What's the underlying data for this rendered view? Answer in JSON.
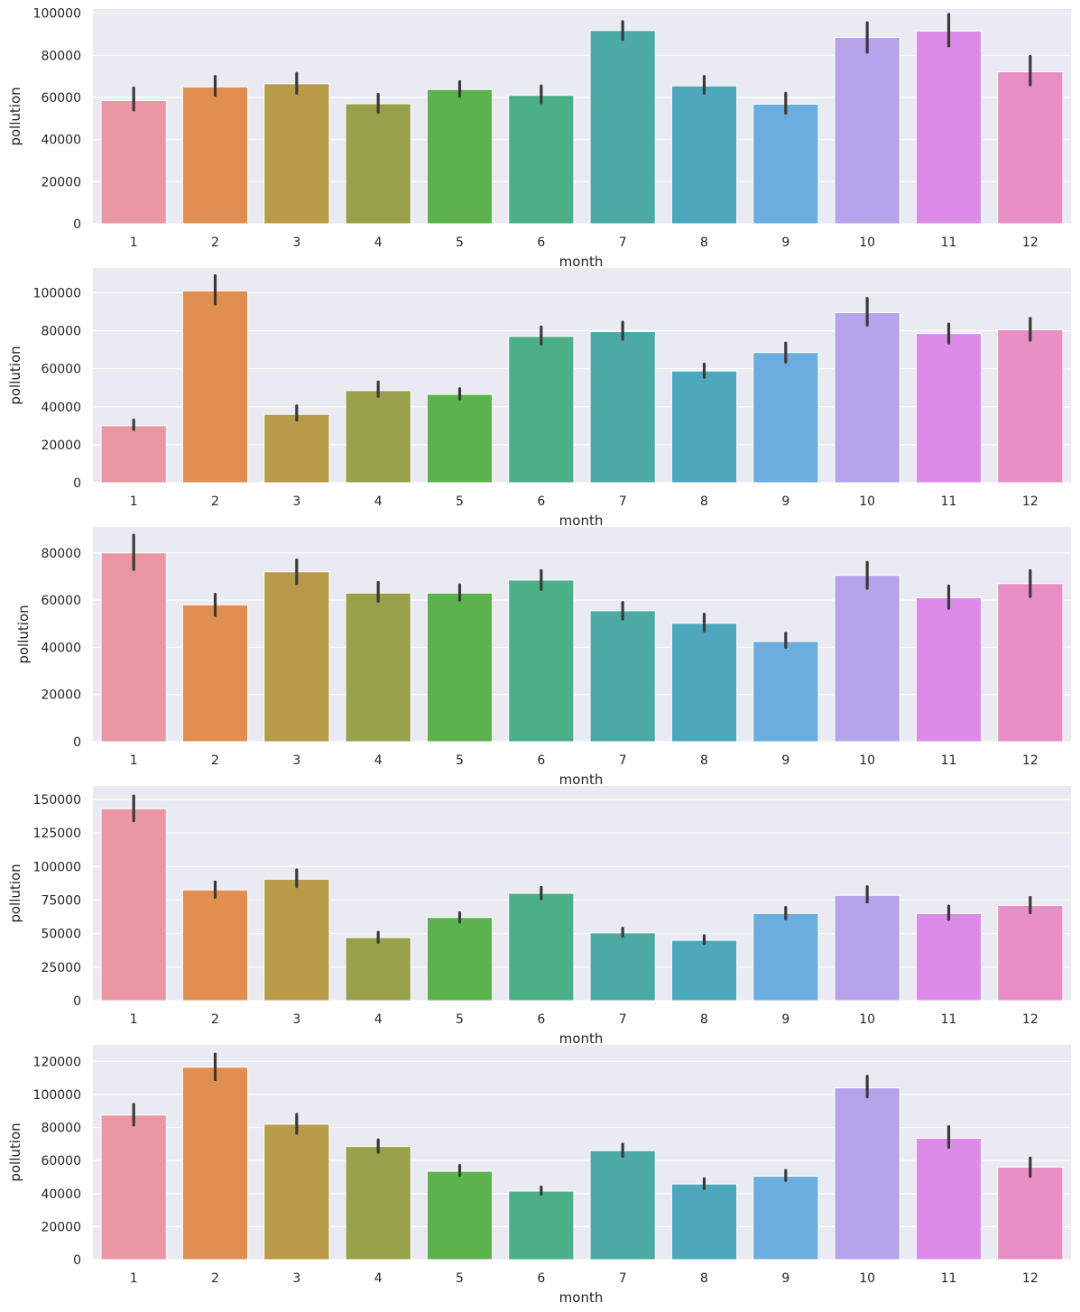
{
  "figure": {
    "type": "bar-grid",
    "rows": 5
  },
  "palette": [
    "#ea96a3",
    "#e08f50",
    "#b89a49",
    "#98a04a",
    "#5cb34e",
    "#4daf88",
    "#4caaa5",
    "#4ea8bd",
    "#6aadde",
    "#b5a4ec",
    "#dd8be8",
    "#e88ec4"
  ],
  "error_color": "#3a3a3a",
  "background_color": "#eaeaf2",
  "chart_data": [
    {
      "type": "bar",
      "xlabel": "month",
      "ylabel": "pollution",
      "categories": [
        "1",
        "2",
        "3",
        "4",
        "5",
        "6",
        "7",
        "8",
        "9",
        "10",
        "11",
        "12"
      ],
      "values": [
        58500,
        65000,
        66500,
        57000,
        63800,
        61000,
        91800,
        65500,
        56800,
        88500,
        91500,
        72200
      ],
      "errors": [
        [
          54000,
          64500
        ],
        [
          61000,
          70000
        ],
        [
          62000,
          71500
        ],
        [
          53000,
          61500
        ],
        [
          60500,
          67500
        ],
        [
          57500,
          65500
        ],
        [
          87500,
          96000
        ],
        [
          62000,
          70000
        ],
        [
          52500,
          62000
        ],
        [
          81500,
          95500
        ],
        [
          84500,
          99500
        ],
        [
          66000,
          79500
        ]
      ],
      "ylim": [
        0,
        102000
      ],
      "yticks": [
        0,
        20000,
        40000,
        60000,
        80000,
        100000
      ],
      "ytick_labels": [
        "0",
        "20000",
        "40000",
        "60000",
        "80000",
        "100000"
      ]
    },
    {
      "type": "bar",
      "xlabel": "month",
      "ylabel": "pollution",
      "categories": [
        "1",
        "2",
        "3",
        "4",
        "5",
        "6",
        "7",
        "8",
        "9",
        "10",
        "11",
        "12"
      ],
      "values": [
        30000,
        101000,
        36000,
        48500,
        46500,
        77000,
        79500,
        58800,
        68500,
        89500,
        78500,
        80500
      ],
      "errors": [
        [
          28000,
          33000
        ],
        [
          94000,
          109000
        ],
        [
          33000,
          40500
        ],
        [
          45500,
          53000
        ],
        [
          44000,
          49500
        ],
        [
          73000,
          82000
        ],
        [
          75500,
          84500
        ],
        [
          55500,
          62500
        ],
        [
          63500,
          73500
        ],
        [
          83000,
          97000
        ],
        [
          73500,
          83500
        ],
        [
          75000,
          86500
        ]
      ],
      "ylim": [
        0,
        113000
      ],
      "yticks": [
        0,
        20000,
        40000,
        60000,
        80000,
        100000
      ],
      "ytick_labels": [
        "0",
        "20000",
        "40000",
        "60000",
        "80000",
        "100000"
      ]
    },
    {
      "type": "bar",
      "xlabel": "month",
      "ylabel": "pollution",
      "categories": [
        "1",
        "2",
        "3",
        "4",
        "5",
        "6",
        "7",
        "8",
        "9",
        "10",
        "11",
        "12"
      ],
      "values": [
        80000,
        58000,
        72000,
        63000,
        63000,
        68500,
        55500,
        50200,
        42500,
        70500,
        61000,
        67000
      ],
      "errors": [
        [
          73000,
          87500
        ],
        [
          53500,
          62500
        ],
        [
          67000,
          77000
        ],
        [
          59500,
          67500
        ],
        [
          60000,
          66500
        ],
        [
          64500,
          72500
        ],
        [
          52000,
          59000
        ],
        [
          47000,
          54000
        ],
        [
          40000,
          46000
        ],
        [
          65000,
          76000
        ],
        [
          56500,
          66000
        ],
        [
          61500,
          72500
        ]
      ],
      "ylim": [
        0,
        91000
      ],
      "yticks": [
        0,
        20000,
        40000,
        60000,
        80000
      ],
      "ytick_labels": [
        "0",
        "20000",
        "40000",
        "60000",
        "80000"
      ]
    },
    {
      "type": "bar",
      "xlabel": "month",
      "ylabel": "pollution",
      "categories": [
        "1",
        "2",
        "3",
        "4",
        "5",
        "6",
        "7",
        "8",
        "9",
        "10",
        "11",
        "12"
      ],
      "values": [
        143000,
        82500,
        90500,
        47000,
        62000,
        80000,
        50500,
        45000,
        65000,
        78500,
        65000,
        71000
      ],
      "errors": [
        [
          134000,
          152500
        ],
        [
          77000,
          88500
        ],
        [
          85000,
          97500
        ],
        [
          43500,
          51000
        ],
        [
          58500,
          65500
        ],
        [
          76000,
          84500
        ],
        [
          48000,
          54000
        ],
        [
          42500,
          48500
        ],
        [
          61000,
          69500
        ],
        [
          73500,
          85000
        ],
        [
          60500,
          70500
        ],
        [
          65500,
          77000
        ]
      ],
      "ylim": [
        0,
        160000
      ],
      "yticks": [
        0,
        25000,
        50000,
        75000,
        100000,
        125000,
        150000
      ],
      "ytick_labels": [
        "0",
        "25000",
        "50000",
        "75000",
        "100000",
        "125000",
        "150000"
      ]
    },
    {
      "type": "bar",
      "xlabel": "month",
      "ylabel": "pollution",
      "categories": [
        "1",
        "2",
        "3",
        "4",
        "5",
        "6",
        "7",
        "8",
        "9",
        "10",
        "11",
        "12"
      ],
      "values": [
        87500,
        116500,
        82000,
        68500,
        53500,
        41500,
        66000,
        45800,
        50500,
        104000,
        73500,
        56000
      ],
      "errors": [
        [
          81500,
          94000
        ],
        [
          109000,
          124500
        ],
        [
          76500,
          88000
        ],
        [
          65000,
          72500
        ],
        [
          51000,
          57000
        ],
        [
          39500,
          44000
        ],
        [
          62500,
          70000
        ],
        [
          43000,
          49000
        ],
        [
          48000,
          54000
        ],
        [
          98500,
          111000
        ],
        [
          68000,
          80500
        ],
        [
          50500,
          61500
        ]
      ],
      "ylim": [
        0,
        130000
      ],
      "yticks": [
        0,
        20000,
        40000,
        60000,
        80000,
        100000,
        120000
      ],
      "ytick_labels": [
        "0",
        "20000",
        "40000",
        "60000",
        "80000",
        "100000",
        "120000"
      ]
    }
  ]
}
